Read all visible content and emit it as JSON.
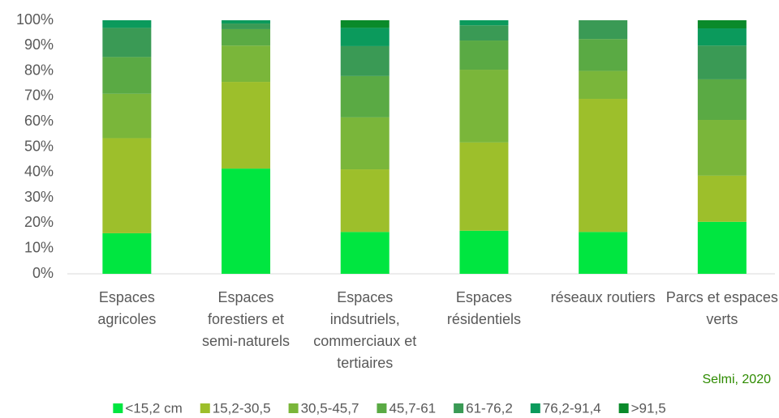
{
  "chart_data": {
    "type": "bar",
    "stacked": true,
    "categories": [
      "Espaces agricoles",
      "Espaces forestiers et semi-naturels",
      "Espaces indsutriels, commerciaux et tertiaires",
      "Espaces résidentiels",
      "réseaux routiers",
      "Parcs et espaces verts"
    ],
    "series": [
      {
        "name": "<15,2 cm",
        "color": "#00e640",
        "values": [
          16,
          41.5,
          16.5,
          17,
          16.5,
          20.5
        ]
      },
      {
        "name": "15,2-30,5",
        "color": "#9dbf2b",
        "values": [
          37.5,
          34.2,
          24.7,
          34.8,
          52.5,
          18.2
        ]
      },
      {
        "name": "30,5-45,7",
        "color": "#7ab63a",
        "values": [
          17.5,
          14.3,
          20.5,
          28.7,
          11,
          22
        ]
      },
      {
        "name": "45,7-61",
        "color": "#5aaa44",
        "values": [
          14.5,
          6.5,
          16.3,
          11.5,
          12.6,
          16
        ]
      },
      {
        "name": "61-76,2",
        "color": "#3a9a55",
        "values": [
          11.5,
          2.2,
          11.8,
          6,
          7.4,
          13.3
        ]
      },
      {
        "name": "76,2-91,4",
        "color": "#0b9a5c",
        "values": [
          3,
          1.3,
          7.2,
          2,
          0,
          6.8
        ]
      },
      {
        "name": ">91,5",
        "color": "#0a8a2a",
        "values": [
          0,
          0,
          3,
          0,
          0,
          3.2
        ]
      }
    ],
    "ylim": [
      0,
      100
    ],
    "yticks": [
      {
        "value": 0,
        "label": "0%"
      },
      {
        "value": 10,
        "label": "10%"
      },
      {
        "value": 20,
        "label": "20%"
      },
      {
        "value": 30,
        "label": "30%"
      },
      {
        "value": 40,
        "label": "40%"
      },
      {
        "value": 50,
        "label": "50%"
      },
      {
        "value": 60,
        "label": "60%"
      },
      {
        "value": 70,
        "label": "70%"
      },
      {
        "value": 80,
        "label": "80%"
      },
      {
        "value": 90,
        "label": "90%"
      },
      {
        "value": 100,
        "label": "100%"
      }
    ],
    "annotation": "Selmi, 2020",
    "legend": "bottom"
  }
}
